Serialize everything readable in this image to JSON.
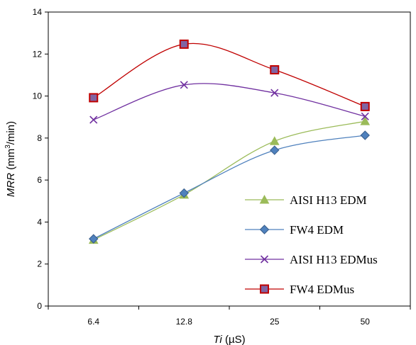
{
  "chart_data": {
    "type": "line",
    "title": "",
    "xlabel_italic": "Ti",
    "xlabel_unit": " (µS)",
    "ylabel_italic": "MRR",
    "ylabel_unit_pre": " (mm",
    "ylabel_unit_sup": "3",
    "ylabel_unit_post": "/min)",
    "categories": [
      "6.4",
      "12.8",
      "25",
      "50"
    ],
    "yticks": [
      "0",
      "2",
      "4",
      "6",
      "8",
      "10",
      "12",
      "14"
    ],
    "ylim": [
      0,
      14
    ],
    "grid": false,
    "legend_position": "bottom-right",
    "series": [
      {
        "name": "AISI H13 EDM",
        "values": [
          3.15,
          5.3,
          7.85,
          8.8
        ],
        "color": "#9bbb59",
        "marker": "triangle"
      },
      {
        "name": "FW4 EDM",
        "values": [
          3.2,
          5.38,
          7.42,
          8.13
        ],
        "color": "#4f81bd",
        "marker": "diamond"
      },
      {
        "name": "AISI H13 EDMus",
        "values": [
          8.87,
          10.53,
          10.15,
          9.03
        ],
        "color": "#7030a0",
        "marker": "x"
      },
      {
        "name": "FW4 EDMus",
        "values": [
          9.92,
          12.47,
          11.25,
          9.5
        ],
        "color": "#c00000",
        "marker": "square"
      }
    ]
  }
}
